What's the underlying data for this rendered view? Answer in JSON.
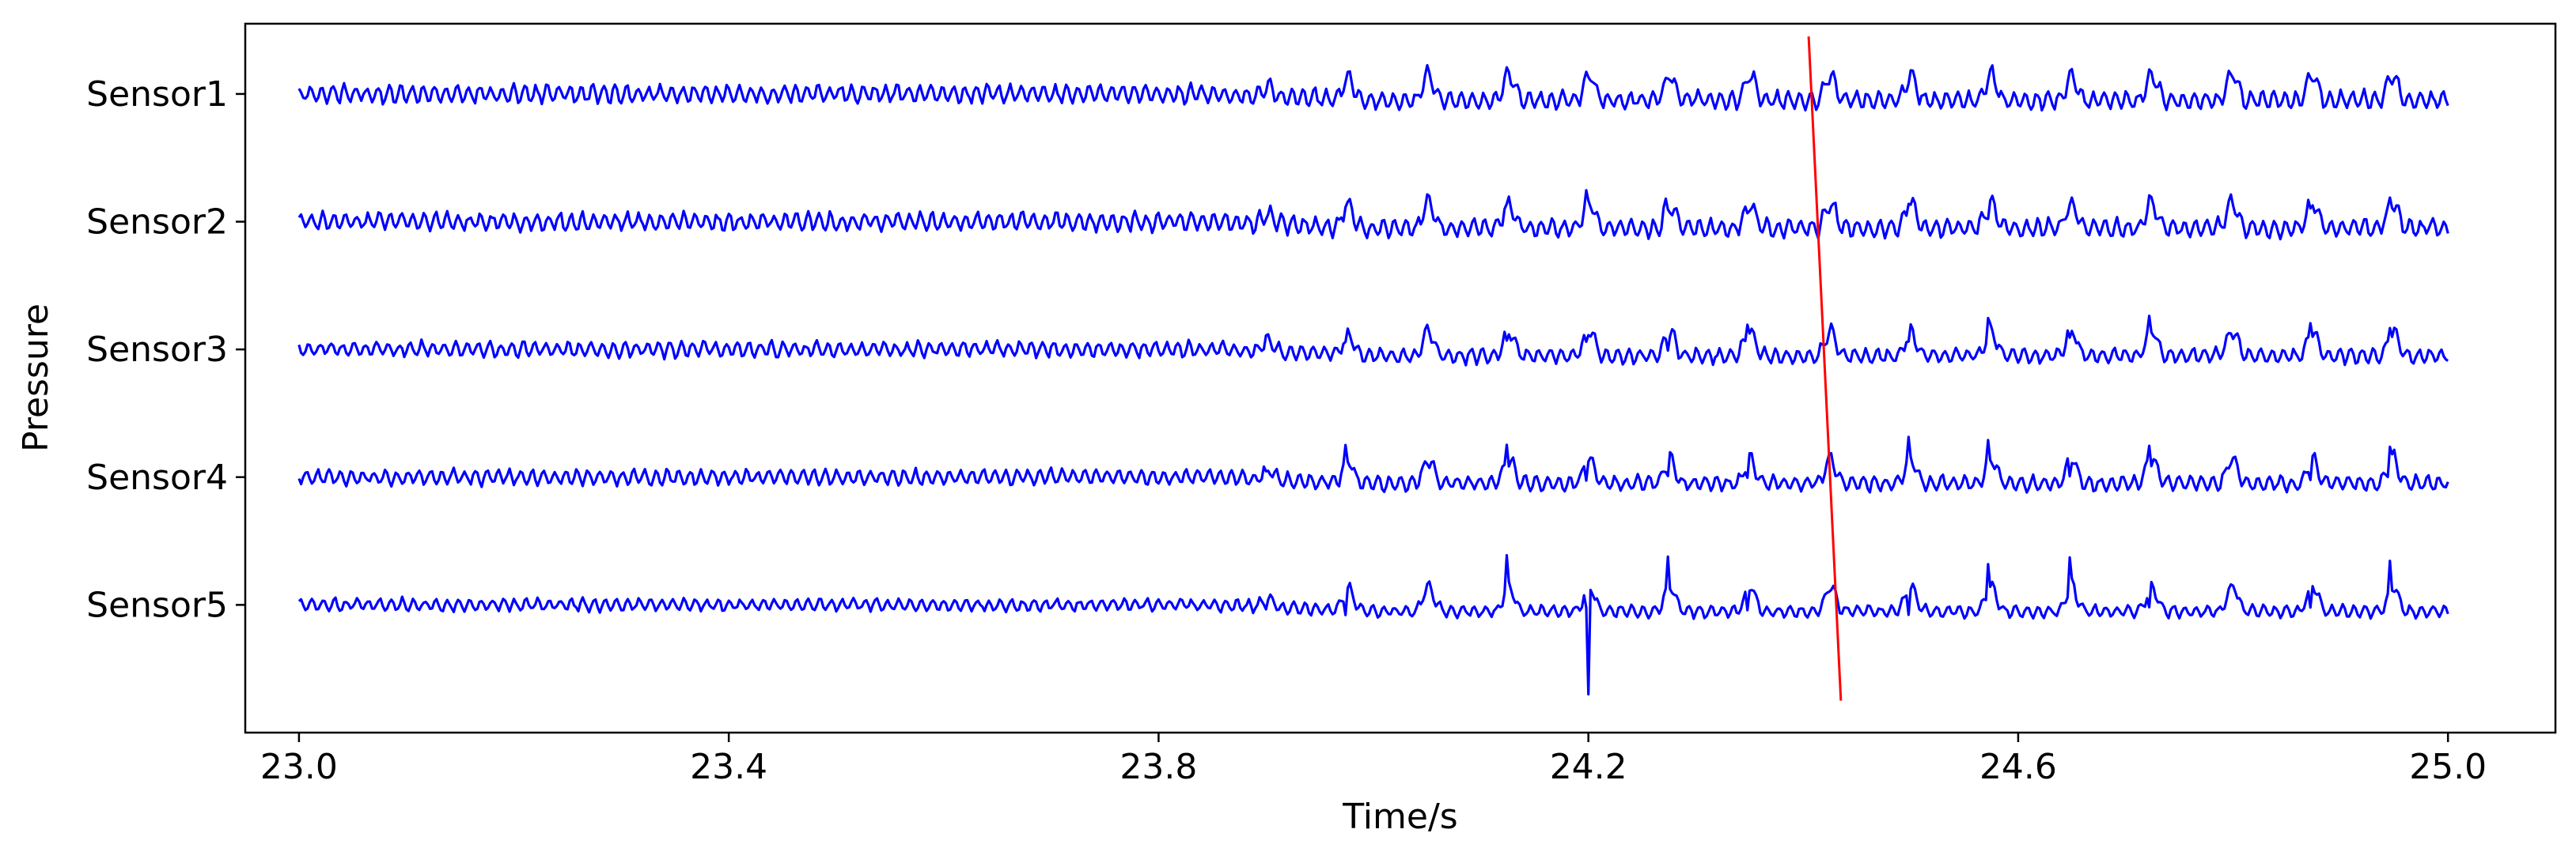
{
  "chart_data": {
    "type": "line",
    "title": "",
    "xlabel": "Time/s",
    "ylabel": "Pressure",
    "xlim": [
      22.95,
      25.1
    ],
    "x_ticks": [
      "23.0",
      "23.4",
      "23.8",
      "24.2",
      "24.6",
      "25.0"
    ],
    "x_tick_values": [
      23.0,
      23.4,
      23.8,
      24.2,
      24.6,
      25.0
    ],
    "grid": false,
    "legend": "none",
    "x_range": [
      23.0,
      25.0
    ],
    "sample_step": 0.002,
    "series": [
      {
        "name": "Sensor1",
        "offset": 5,
        "fast_amp": 0.06,
        "spike_amp": 0.0,
        "seed": 11
      },
      {
        "name": "Sensor2",
        "offset": 4,
        "fast_amp": 0.06,
        "spike_amp": 0.06,
        "seed": 23
      },
      {
        "name": "Sensor3",
        "offset": 3,
        "fast_amp": 0.05,
        "spike_amp": 0.1,
        "seed": 37
      },
      {
        "name": "Sensor4",
        "offset": 2,
        "fast_amp": 0.05,
        "spike_amp": 0.14,
        "seed": 51
      },
      {
        "name": "Sensor5",
        "offset": 1,
        "fast_amp": 0.04,
        "spike_amp": 0.22,
        "seed": 73
      }
    ],
    "slow_wave": {
      "start": 23.85,
      "ramp": 0.15,
      "period": 0.0748,
      "amp": 0.2,
      "phase": 24.04
    },
    "fast_wave": {
      "period": 0.0105
    },
    "marked_spike": {
      "x": 24.2,
      "series": "Sensor5",
      "value": 0.3
    },
    "red_line": {
      "x": [
        24.405,
        24.435
      ],
      "y": [
        5.45,
        0.25
      ]
    },
    "ylim": [
      0.0,
      5.55
    ],
    "colors": {
      "series": "#0000ff",
      "marker_line": "#ff0000",
      "axes": "#000000"
    }
  }
}
